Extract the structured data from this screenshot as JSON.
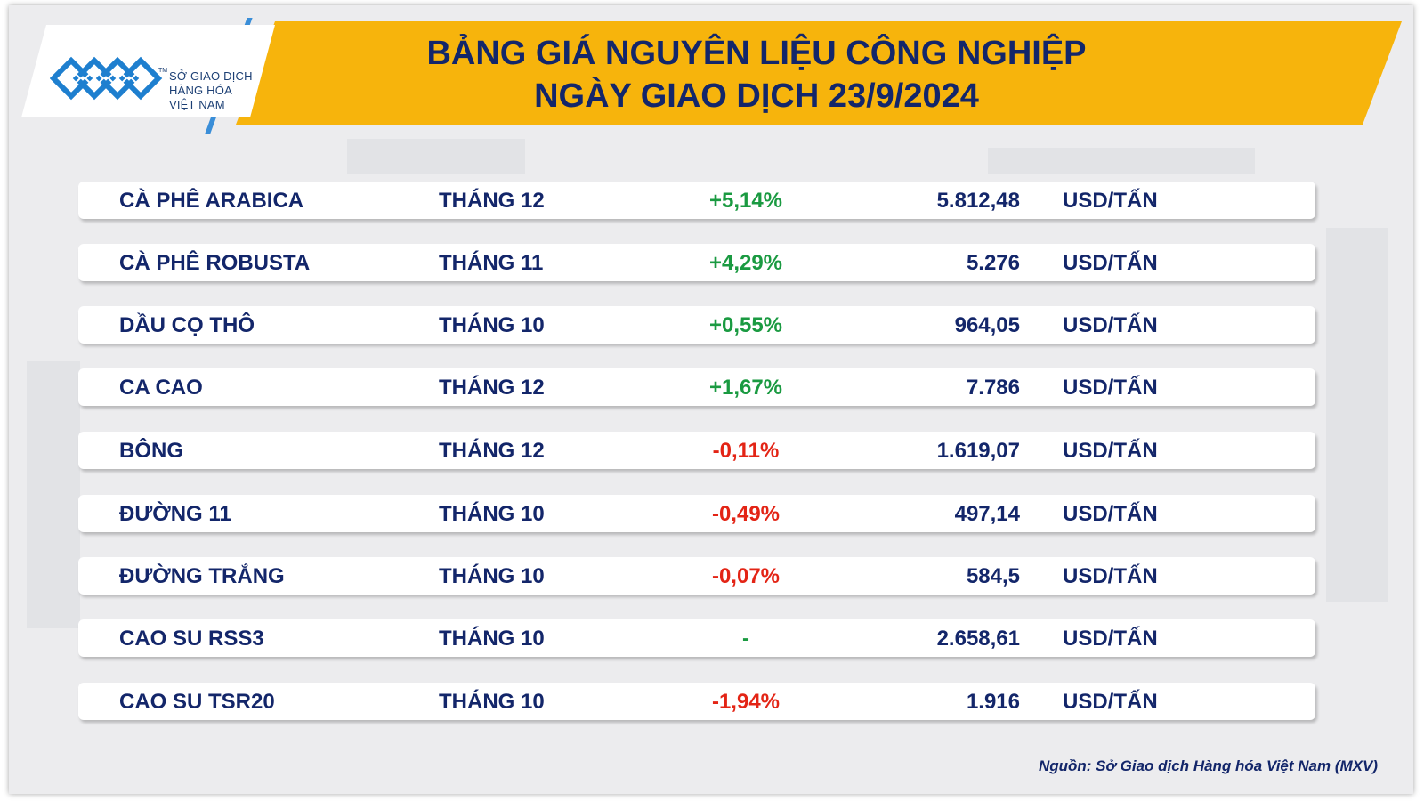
{
  "header": {
    "logo_lines": [
      "SỞ GIAO DỊCH",
      "HÀNG HÓA",
      "VIỆT NAM"
    ],
    "logo_tm": "TM",
    "title_line1": "BẢNG GIÁ NGUYÊN LIỆU CÔNG NGHIỆP",
    "title_line2": "NGÀY GIAO DỊCH 23/9/2024"
  },
  "colors": {
    "banner": "#f7b40c",
    "title": "#13266a",
    "positive": "#1a9a41",
    "negative": "#e32415",
    "logo_blue": "#1e7fcf"
  },
  "rows": [
    {
      "name": "CÀ PHÊ ARABICA",
      "month": "THÁNG 12",
      "change": "+5,14%",
      "price": "5.812,48",
      "unit": "USD/TẤN",
      "trend": "up"
    },
    {
      "name": "CÀ PHÊ ROBUSTA",
      "month": "THÁNG 11",
      "change": "+4,29%",
      "price": "5.276",
      "unit": "USD/TẤN",
      "trend": "up"
    },
    {
      "name": "DẦU CỌ THÔ",
      "month": "THÁNG 10",
      "change": "+0,55%",
      "price": "964,05",
      "unit": "USD/TẤN",
      "trend": "up"
    },
    {
      "name": "CA CAO",
      "month": "THÁNG 12",
      "change": "+1,67%",
      "price": "7.786",
      "unit": "USD/TẤN",
      "trend": "up"
    },
    {
      "name": "BÔNG",
      "month": "THÁNG 12",
      "change": "-0,11%",
      "price": "1.619,07",
      "unit": "USD/TẤN",
      "trend": "down"
    },
    {
      "name": "ĐƯỜNG 11",
      "month": "THÁNG 10",
      "change": "-0,49%",
      "price": "497,14",
      "unit": "USD/TẤN",
      "trend": "down"
    },
    {
      "name": "ĐƯỜNG TRẮNG",
      "month": "THÁNG 10",
      "change": "-0,07%",
      "price": "584,5",
      "unit": "USD/TẤN",
      "trend": "down"
    },
    {
      "name": "CAO SU RSS3",
      "month": "THÁNG 10",
      "change": "-",
      "price": "2.658,61",
      "unit": "USD/TẤN",
      "trend": "flat"
    },
    {
      "name": "CAO SU TSR20",
      "month": "THÁNG 10",
      "change": "-1,94%",
      "price": "1.916",
      "unit": "USD/TẤN",
      "trend": "down"
    }
  ],
  "footer": {
    "source": "Nguồn: Sở Giao dịch Hàng hóa Việt Nam (MXV)"
  }
}
